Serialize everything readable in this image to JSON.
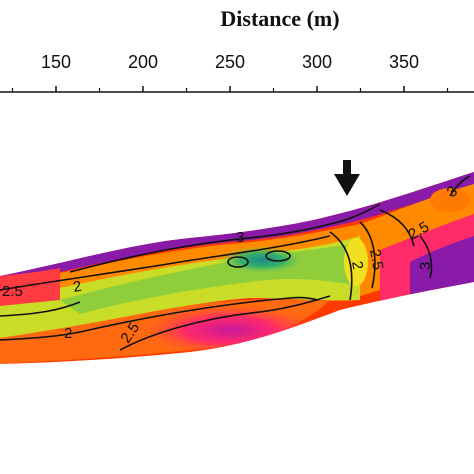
{
  "chart_data": {
    "type": "heatmap",
    "title": "",
    "xlabel": "Distance (m)",
    "ylabel": "",
    "xticks": [
      150,
      200,
      250,
      300,
      350
    ],
    "contour_levels": [
      "2",
      "2.5",
      "3"
    ],
    "contour_labels": [
      "2.5",
      "2",
      "2",
      "2.5",
      "3",
      "2",
      "2.5",
      "2.5",
      "3",
      "3"
    ],
    "marker": "down-arrow",
    "colormap": [
      "#1f8a8a",
      "#35b06a",
      "#8fce3a",
      "#d8e020",
      "#ffcc00",
      "#ff8a00",
      "#ff3a00",
      "#ff2a6a",
      "#d0189a",
      "#8a1aa8",
      "#6a1aa8"
    ]
  }
}
